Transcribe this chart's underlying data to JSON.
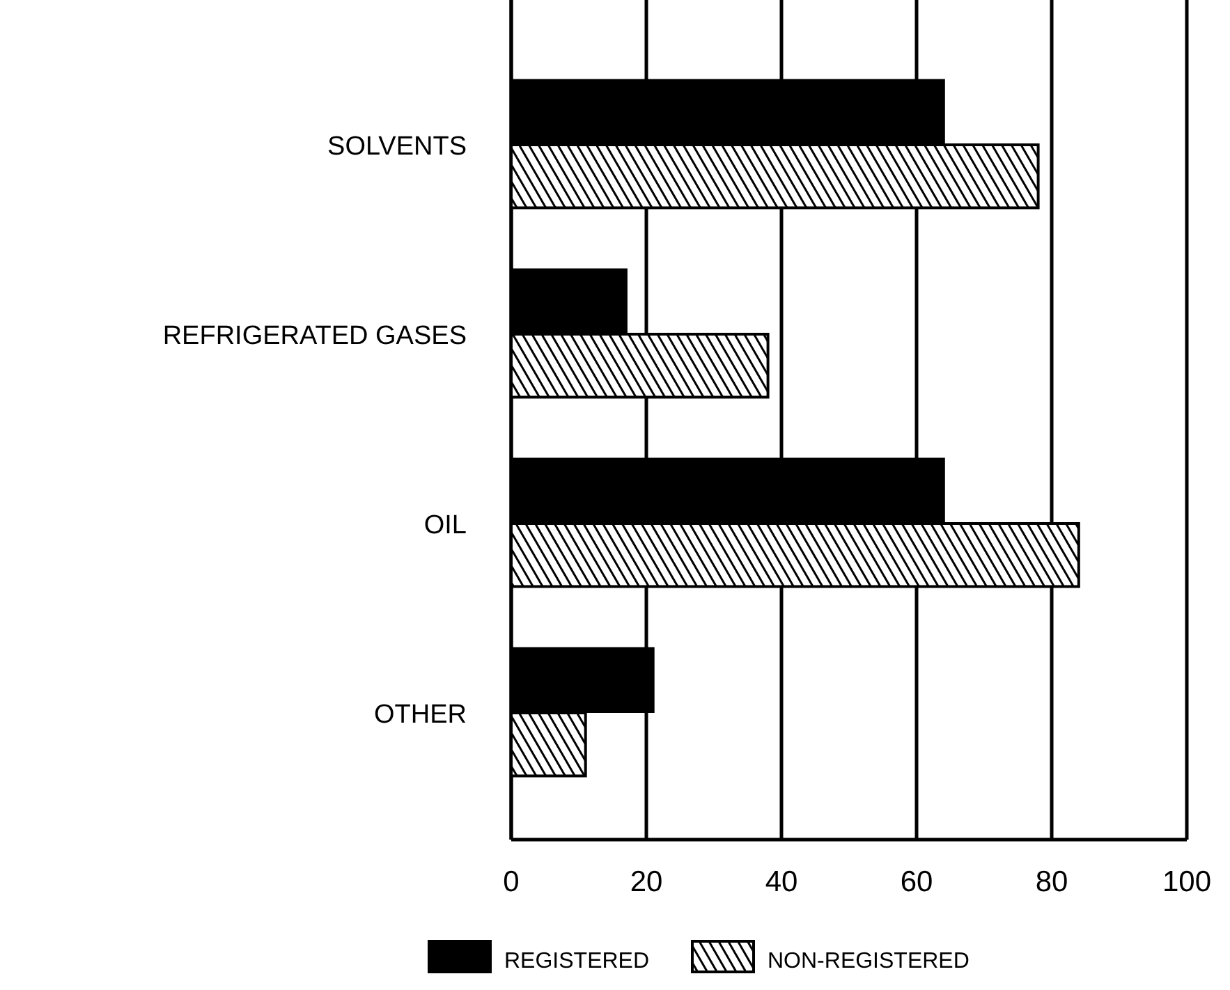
{
  "chart_data": {
    "type": "bar",
    "orientation": "horizontal",
    "categories": [
      "SOLVENTS",
      "REFRIGERATED GASES",
      "OIL",
      "OTHER"
    ],
    "series": [
      {
        "name": "REGISTERED",
        "color": "#000000",
        "values": [
          64,
          17,
          64,
          21
        ]
      },
      {
        "name": "NON-REGISTERED",
        "color": "#000000",
        "values": [
          78,
          38,
          84,
          11
        ]
      }
    ],
    "xlim": [
      0,
      100
    ],
    "xticks": [
      0,
      20,
      40,
      60,
      80,
      100
    ],
    "grid": "x",
    "legend": "bottom"
  }
}
